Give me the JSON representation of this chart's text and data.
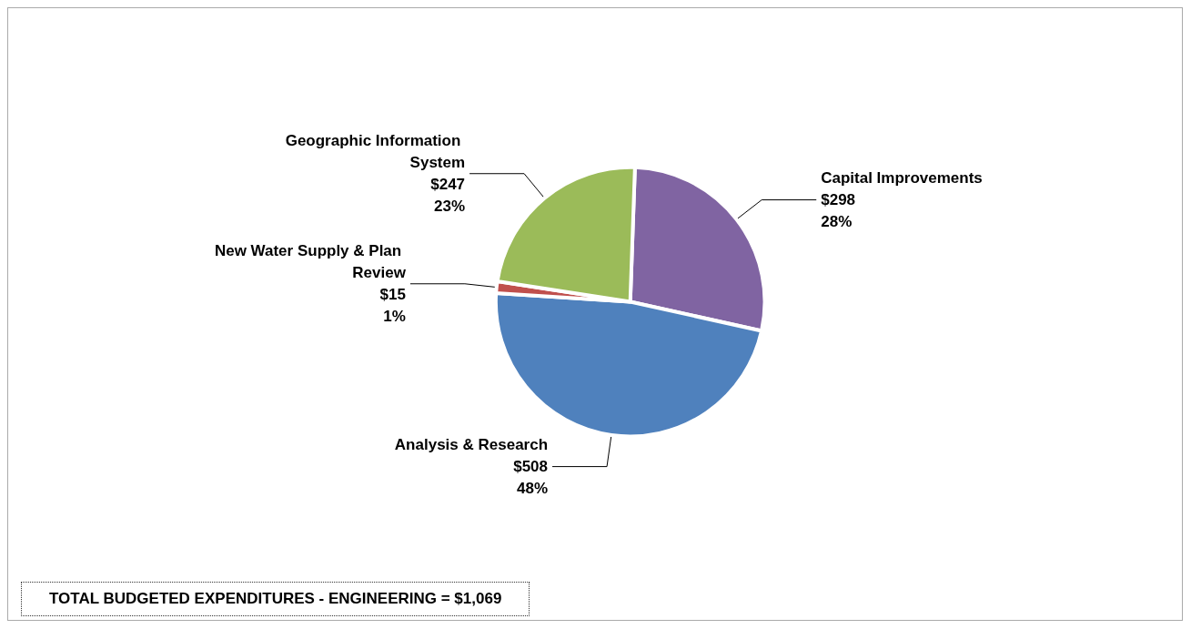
{
  "chart_data": {
    "type": "pie",
    "categories": [
      "Capital Improvements",
      "Analysis & Research",
      "New Water Supply & Plan Review",
      "Geographic Information System"
    ],
    "values": [
      298,
      508,
      15,
      247
    ],
    "colors": [
      "#8064a2",
      "#4f81bd",
      "#c0504d",
      "#9bbb59"
    ],
    "value_labels": [
      "$298\n28%",
      "$508\n48%",
      "$15\n1%",
      "$247\n23%"
    ],
    "legend": false,
    "annotations": [
      "TOTAL BUDGETED EXPENDITURES - ENGINEERING = $1,069"
    ]
  }
}
